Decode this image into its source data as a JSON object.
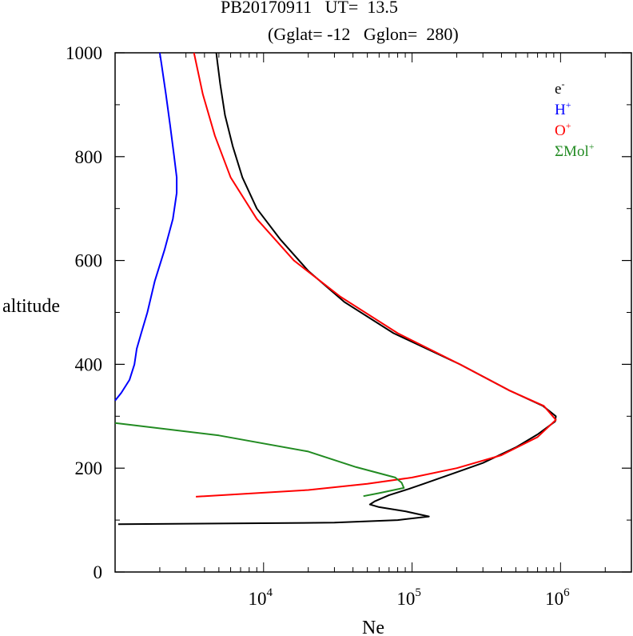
{
  "chart_data": {
    "type": "line",
    "title": "PB20170911   UT=  13.5",
    "subtitle": "(Gglat= -12   Gglon=  280)",
    "xlabel": "Ne",
    "ylabel": "altitude",
    "xscale": "log",
    "xlim": [
      1000,
      3000000
    ],
    "ylim": [
      0,
      1000
    ],
    "x_ticks": [
      {
        "value": 10000,
        "base": "10",
        "exp": "4"
      },
      {
        "value": 100000,
        "base": "10",
        "exp": "5"
      },
      {
        "value": 1000000,
        "base": "10",
        "exp": "6"
      }
    ],
    "y_ticks": [
      0,
      200,
      400,
      600,
      800,
      1000
    ],
    "grid": false,
    "legend": {
      "placement": "top-right"
    },
    "series": [
      {
        "name": "e-",
        "base": "e",
        "sup": "-",
        "color": "#000000",
        "points": [
          [
            1050,
            92
          ],
          [
            30000,
            95
          ],
          [
            80000,
            100
          ],
          [
            130000,
            107
          ],
          [
            90000,
            117
          ],
          [
            60000,
            125
          ],
          [
            52000,
            130
          ],
          [
            56000,
            136
          ],
          [
            70000,
            148
          ],
          [
            95000,
            160
          ],
          [
            120000,
            170
          ],
          [
            190000,
            190
          ],
          [
            300000,
            210
          ],
          [
            500000,
            240
          ],
          [
            700000,
            265
          ],
          [
            920000,
            290
          ],
          [
            930000,
            300
          ],
          [
            760000,
            320
          ],
          [
            450000,
            350
          ],
          [
            210000,
            400
          ],
          [
            75000,
            460
          ],
          [
            35000,
            520
          ],
          [
            20000,
            580
          ],
          [
            13000,
            640
          ],
          [
            9000,
            700
          ],
          [
            7200,
            760
          ],
          [
            6200,
            820
          ],
          [
            5500,
            880
          ],
          [
            5100,
            940
          ],
          [
            4900,
            980
          ],
          [
            4800,
            1000
          ]
        ]
      },
      {
        "name": "H+",
        "base": "H",
        "sup": "+",
        "color": "#0000ff",
        "points": [
          [
            1000,
            330
          ],
          [
            1100,
            345
          ],
          [
            1250,
            370
          ],
          [
            1350,
            400
          ],
          [
            1400,
            430
          ],
          [
            1500,
            460
          ],
          [
            1650,
            500
          ],
          [
            1850,
            560
          ],
          [
            2150,
            620
          ],
          [
            2450,
            680
          ],
          [
            2600,
            730
          ],
          [
            2600,
            760
          ],
          [
            2500,
            800
          ],
          [
            2350,
            860
          ],
          [
            2200,
            920
          ],
          [
            2050,
            980
          ],
          [
            2000,
            1000
          ]
        ]
      },
      {
        "name": "O+",
        "base": "O",
        "sup": "+",
        "color": "#ff0000",
        "points": [
          [
            3500,
            145
          ],
          [
            20000,
            158
          ],
          [
            50000,
            170
          ],
          [
            100000,
            182
          ],
          [
            200000,
            200
          ],
          [
            400000,
            225
          ],
          [
            700000,
            260
          ],
          [
            930000,
            293
          ],
          [
            770000,
            320
          ],
          [
            450000,
            350
          ],
          [
            210000,
            400
          ],
          [
            80000,
            460
          ],
          [
            33000,
            530
          ],
          [
            16000,
            600
          ],
          [
            9000,
            680
          ],
          [
            6000,
            760
          ],
          [
            4700,
            840
          ],
          [
            3900,
            920
          ],
          [
            3400,
            1000
          ]
        ]
      },
      {
        "name": "ΣMol+",
        "base": "ΣMol",
        "sup": "+",
        "color": "#228b22",
        "points": [
          [
            1000,
            287
          ],
          [
            5000,
            263
          ],
          [
            20000,
            232
          ],
          [
            42000,
            202
          ],
          [
            77000,
            182
          ],
          [
            85000,
            172
          ],
          [
            88000,
            162
          ],
          [
            60000,
            152
          ],
          [
            47000,
            146
          ]
        ]
      }
    ]
  }
}
